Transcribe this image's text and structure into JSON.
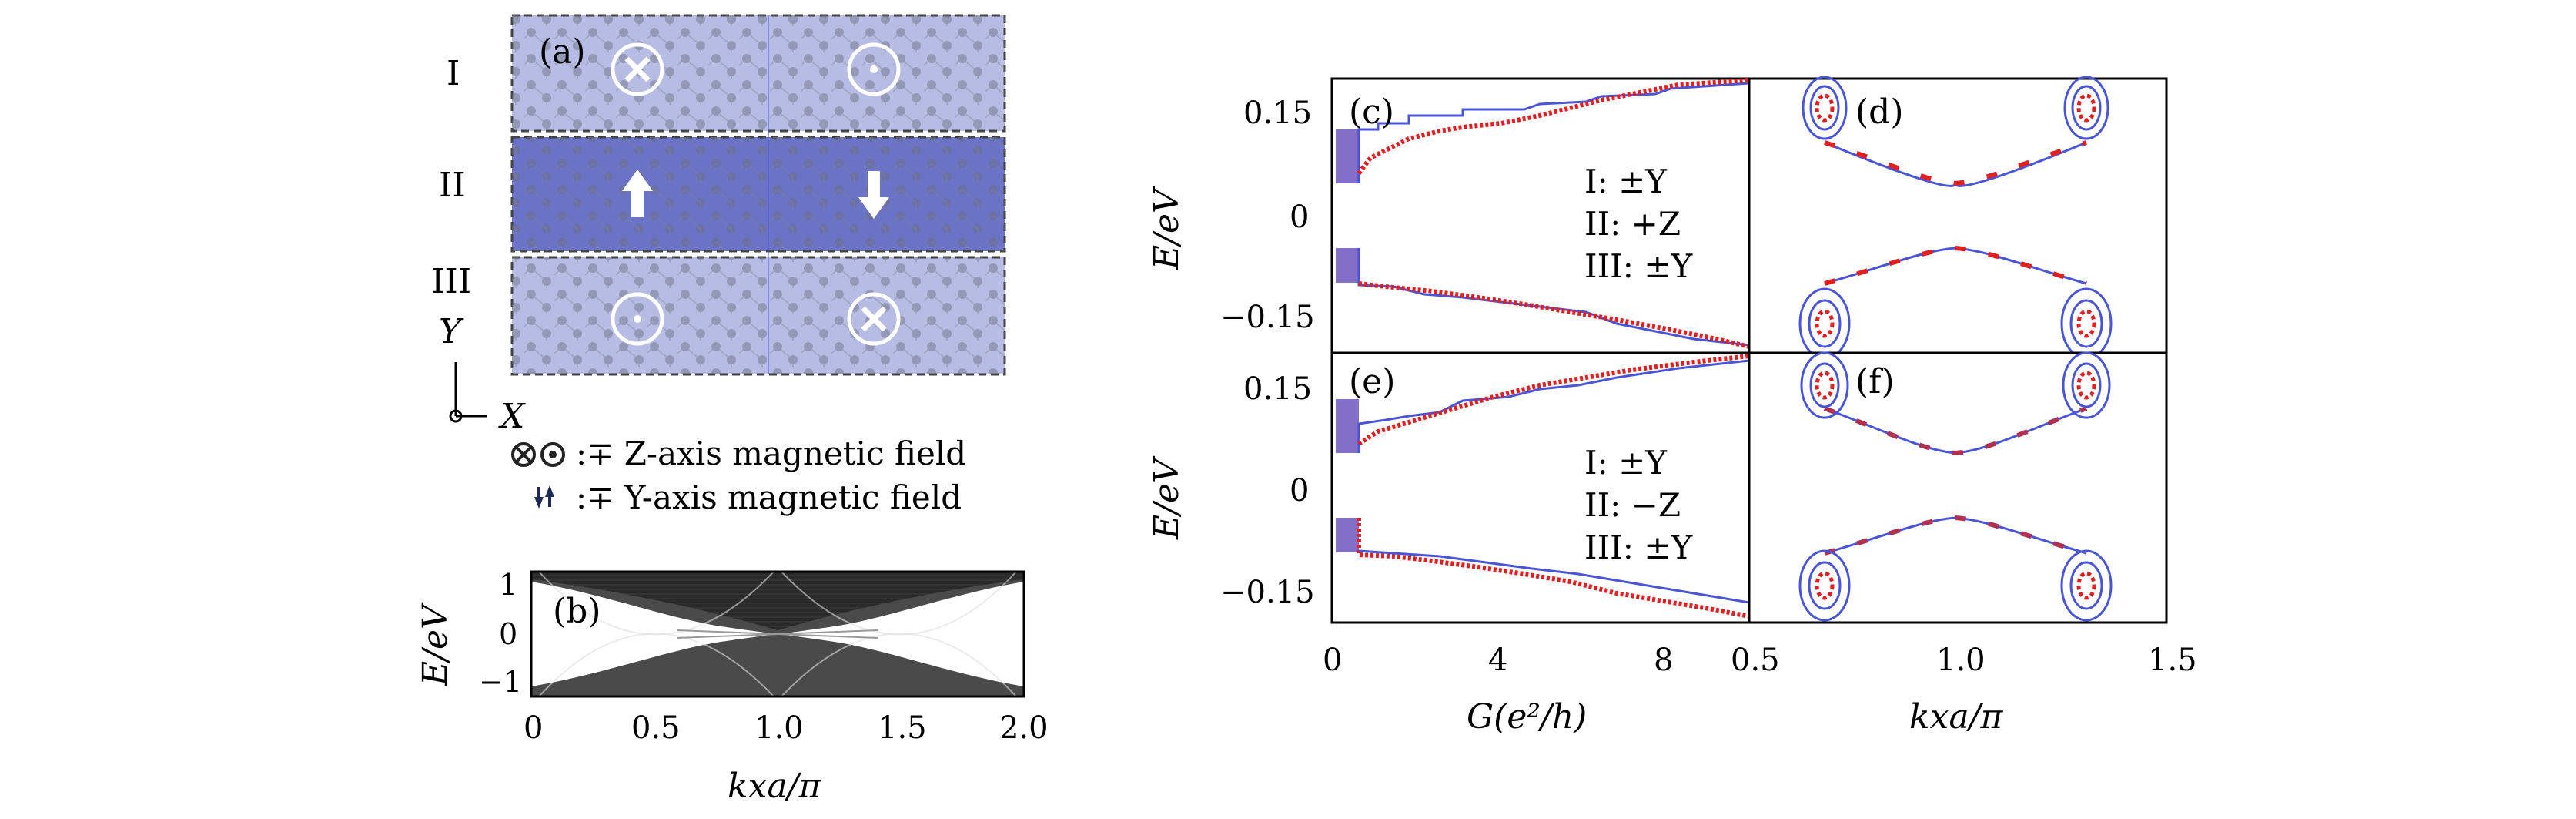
{
  "panel_a": {
    "tag": "(a)",
    "regions": [
      "I",
      "II",
      "III"
    ],
    "axis_y": "Y",
    "axis_x": "X",
    "legend_z": ":∓ Z-axis magnetic field",
    "legend_y": ":∓ Y-axis magnetic field",
    "colors": {
      "region_light": "#b6bce3",
      "region_dark": "#6b73c6",
      "atom": "#5f6373"
    },
    "icons": [
      "cross-field-icon",
      "dot-field-icon",
      "up-arrow-icon",
      "down-arrow-icon"
    ]
  },
  "panel_b": {
    "tag": "(b)",
    "ylabel": "E/eV",
    "xlabel": "kxa/π",
    "xticks": [
      "0",
      "0.5",
      "1.0",
      "1.5",
      "2.0"
    ],
    "yticks": [
      "1",
      "0",
      "−1"
    ]
  },
  "panel_c": {
    "tag": "(c)",
    "legend": [
      "I: ±Y",
      "II: +Z",
      "III: ±Y"
    ]
  },
  "panel_d": {
    "tag": "(d)"
  },
  "panel_e": {
    "tag": "(e)",
    "legend": [
      "I: ±Y",
      "II: −Z",
      "III: ±Y"
    ]
  },
  "panel_f": {
    "tag": "(f)"
  },
  "shared": {
    "ylabel": "E/eV",
    "xlabel_left": "G(e²/h)",
    "xlabel_right": "kxa/π",
    "yticks": [
      "0.15",
      "0",
      "−0.15"
    ],
    "xticks_left": [
      "0",
      "4",
      "8"
    ],
    "xticks_right": [
      "0.5",
      "1.0",
      "1.5"
    ],
    "colors": {
      "red": "#e02020",
      "blue": "#4a55d6"
    }
  },
  "chart_data": [
    {
      "type": "line",
      "panel": "(b)",
      "xlabel": "kxa/π",
      "ylabel": "E/eV",
      "xlim": [
        0,
        2
      ],
      "ylim": [
        -1.3,
        1.3
      ],
      "series": [
        {
          "x": [
            0,
            0.5,
            1.0,
            1.5,
            2.0
          ],
          "y": [
            1.3,
            0.25,
            0.0,
            0.25,
            1.3
          ]
        },
        {
          "x": [
            0,
            0.5,
            1.0,
            1.5,
            2.0
          ],
          "y": [
            -1.3,
            -0.25,
            0.0,
            -0.25,
            -1.3
          ]
        }
      ]
    },
    {
      "type": "line",
      "panel": "(c)",
      "xlabel": "G(e²/h)",
      "ylabel": "E/eV",
      "xlim": [
        0,
        10
      ],
      "ylim": [
        -0.2,
        0.2
      ],
      "series": [
        {
          "x": [
            0,
            1,
            1,
            2,
            3,
            4,
            5,
            6,
            7,
            8,
            9,
            10
          ],
          "y": [
            0.05,
            0.05,
            0.09,
            0.1,
            0.11,
            0.12,
            0.125,
            0.135,
            0.15,
            0.17,
            0.18,
            0.19
          ]
        },
        {
          "x": [
            0,
            1,
            1,
            3,
            5,
            7,
            9,
            10
          ],
          "y": [
            0.05,
            0.05,
            0.11,
            0.125,
            0.14,
            0.165,
            0.18,
            0.19
          ]
        }
      ]
    },
    {
      "type": "line",
      "panel": "(d)",
      "xlabel": "kxa/π",
      "ylabel": "E/eV",
      "xlim": [
        0.5,
        1.5
      ],
      "ylim": [
        -0.2,
        0.2
      ],
      "series": [
        {
          "x": [
            0.68,
            0.85,
            1.0,
            1.15,
            1.32
          ],
          "y": [
            0.09,
            0.065,
            0.05,
            0.065,
            0.09
          ]
        },
        {
          "x": [
            0.68,
            0.85,
            1.0,
            1.15,
            1.32
          ],
          "y": [
            -0.11,
            -0.07,
            -0.05,
            -0.07,
            -0.11
          ]
        }
      ]
    }
  ]
}
